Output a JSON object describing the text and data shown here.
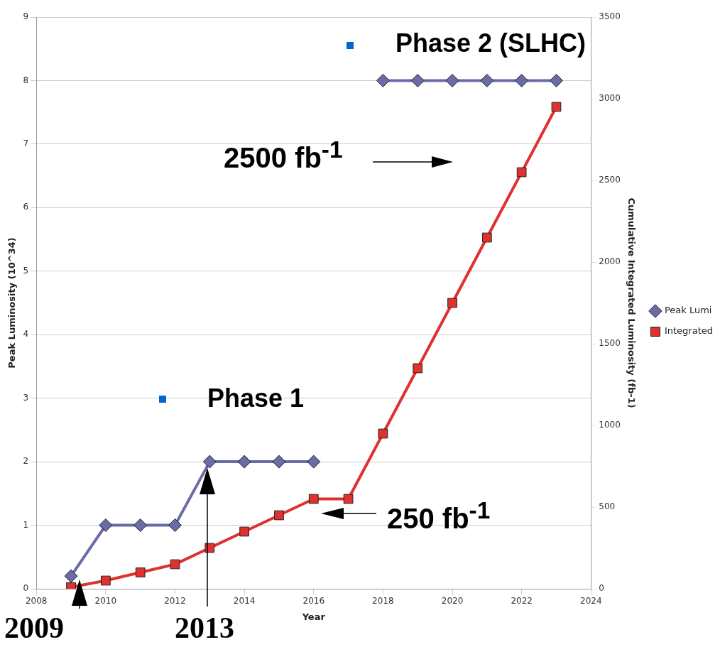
{
  "chart_data": {
    "type": "line",
    "xlabel": "Year",
    "ylabel": "Peak Luminosity (10^34)",
    "y2label": "Cumulative Integrated Luminosity (fb-1)",
    "x": [
      2009,
      2010,
      2011,
      2012,
      2013,
      2014,
      2015,
      2016,
      2017,
      2018,
      2019,
      2020,
      2021,
      2022,
      2023
    ],
    "series": [
      {
        "name": "Peak Lumi",
        "color": "#6b6ba8",
        "marker": "diamond",
        "values": [
          0.2,
          1,
          1,
          1,
          2,
          2,
          2,
          2,
          null,
          8,
          8,
          8,
          8,
          8,
          8
        ]
      },
      {
        "name": "Integrated",
        "color": "#e03030",
        "marker": "square",
        "axis": "y2",
        "values": [
          10,
          50,
          100,
          150,
          250,
          350,
          450,
          550,
          550,
          950,
          1350,
          1750,
          2150,
          2550,
          2950
        ]
      }
    ],
    "xlim": [
      2008,
      2024
    ],
    "xticks": [
      2008,
      2010,
      2012,
      2014,
      2016,
      2018,
      2020,
      2022,
      2024
    ],
    "ylim": [
      0,
      9
    ],
    "yticks": [
      0,
      1,
      2,
      3,
      4,
      5,
      6,
      7,
      8,
      9
    ],
    "y2lim": [
      0,
      3500
    ],
    "y2ticks": [
      0,
      500,
      1000,
      1500,
      2000,
      2500,
      3000,
      3500
    ],
    "grid": "y",
    "legend": "right",
    "annotations": [
      "Phase 1",
      "Phase 2 (SLHC)",
      "2500 fb$^{-1}$",
      "250 fb$^{-1}$",
      "2009",
      "2013"
    ]
  }
}
